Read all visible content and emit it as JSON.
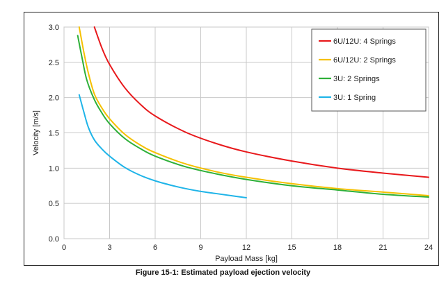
{
  "caption": "Figure 15-1: Estimated payload ejection velocity",
  "chart_data": {
    "type": "line",
    "title": "",
    "xlabel": "Payload Mass [kg]",
    "ylabel": "Velocity [m/s]",
    "xlim": [
      0,
      24
    ],
    "ylim": [
      0,
      3.0
    ],
    "xticks": [
      "0",
      "3",
      "6",
      "9",
      "12",
      "15",
      "18",
      "21",
      "24"
    ],
    "yticks": [
      "0.0",
      "0.5",
      "1.0",
      "1.5",
      "2.0",
      "2.5",
      "3.0"
    ],
    "grid": true,
    "legend_position": "top-right",
    "series": [
      {
        "name": "6U/12U: 4 Springs",
        "color": "#e8191c",
        "x": [
          2.0,
          2.5,
          3,
          4,
          5,
          6,
          8,
          10,
          12,
          15,
          18,
          21,
          24
        ],
        "y": [
          3.0,
          2.7,
          2.47,
          2.14,
          1.91,
          1.74,
          1.51,
          1.35,
          1.23,
          1.1,
          1.0,
          0.93,
          0.87
        ]
      },
      {
        "name": "6U/12U: 2 Springs",
        "color": "#f5c000",
        "x": [
          1.0,
          1.3,
          1.6,
          2,
          2.5,
          3,
          4,
          5,
          6,
          8,
          10,
          12,
          15,
          18,
          21,
          24
        ],
        "y": [
          3.0,
          2.65,
          2.35,
          2.05,
          1.85,
          1.7,
          1.48,
          1.33,
          1.22,
          1.06,
          0.95,
          0.87,
          0.78,
          0.71,
          0.66,
          0.61
        ]
      },
      {
        "name": "3U: 2 Springs",
        "color": "#2eb039",
        "x": [
          0.9,
          1.2,
          1.5,
          2,
          2.5,
          3,
          4,
          5,
          6,
          8,
          10,
          12,
          15,
          18,
          21,
          24
        ],
        "y": [
          2.88,
          2.55,
          2.25,
          1.97,
          1.78,
          1.63,
          1.42,
          1.28,
          1.17,
          1.02,
          0.92,
          0.84,
          0.75,
          0.69,
          0.63,
          0.59
        ]
      },
      {
        "name": "3U: 1 Spring",
        "color": "#1fb4e8",
        "x": [
          1.0,
          1.3,
          1.6,
          2,
          2.5,
          3,
          4,
          5,
          6,
          7,
          8,
          9,
          10,
          11,
          12
        ],
        "y": [
          2.04,
          1.8,
          1.58,
          1.4,
          1.27,
          1.17,
          1.01,
          0.9,
          0.82,
          0.76,
          0.71,
          0.67,
          0.64,
          0.61,
          0.58
        ]
      }
    ]
  }
}
